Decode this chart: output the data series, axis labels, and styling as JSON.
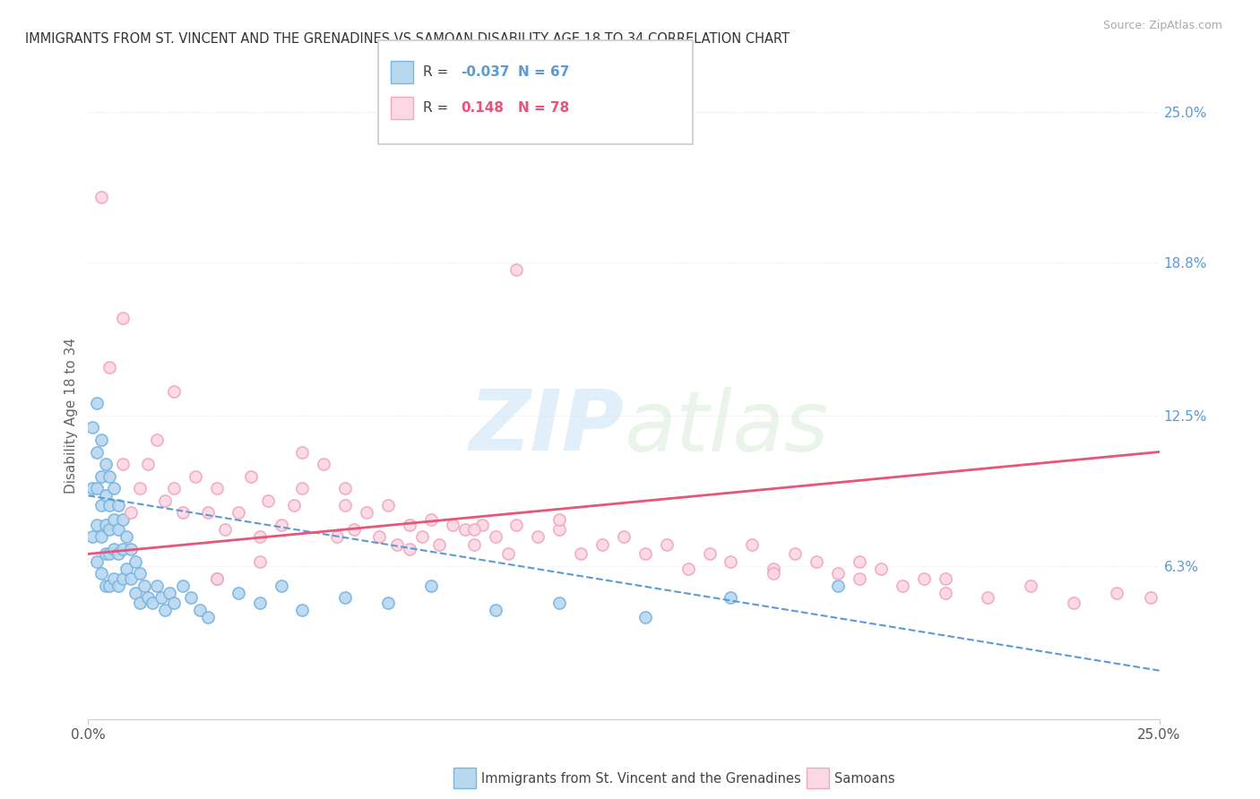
{
  "title": "IMMIGRANTS FROM ST. VINCENT AND THE GRENADINES VS SAMOAN DISABILITY AGE 18 TO 34 CORRELATION CHART",
  "source": "Source: ZipAtlas.com",
  "ylabel": "Disability Age 18 to 34",
  "xlim": [
    0.0,
    0.25
  ],
  "ylim": [
    0.0,
    0.25
  ],
  "ytick_values": [
    0.063,
    0.125,
    0.188,
    0.25
  ],
  "ytick_labels": [
    "6.3%",
    "12.5%",
    "18.8%",
    "25.0%"
  ],
  "xtick_values": [
    0.0,
    0.25
  ],
  "xtick_labels": [
    "0.0%",
    "25.0%"
  ],
  "r1_val": "-0.037",
  "n1_val": "67",
  "r2_val": "0.148",
  "n2_val": "78",
  "color_blue_face": "#b8d8f0",
  "color_blue_edge": "#7ab5e0",
  "color_pink_face": "#fcd8e4",
  "color_pink_edge": "#f0a8c0",
  "color_blue_line": "#5b9bd5",
  "color_pink_line": "#e8547a",
  "blue_line_y0": 0.092,
  "blue_line_y1": 0.02,
  "pink_line_y0": 0.068,
  "pink_line_y1": 0.11,
  "blue_x": [
    0.001,
    0.001,
    0.001,
    0.002,
    0.002,
    0.002,
    0.002,
    0.002,
    0.003,
    0.003,
    0.003,
    0.003,
    0.003,
    0.004,
    0.004,
    0.004,
    0.004,
    0.004,
    0.005,
    0.005,
    0.005,
    0.005,
    0.005,
    0.006,
    0.006,
    0.006,
    0.006,
    0.007,
    0.007,
    0.007,
    0.007,
    0.008,
    0.008,
    0.008,
    0.009,
    0.009,
    0.01,
    0.01,
    0.011,
    0.011,
    0.012,
    0.012,
    0.013,
    0.014,
    0.015,
    0.016,
    0.017,
    0.018,
    0.019,
    0.02,
    0.022,
    0.024,
    0.026,
    0.028,
    0.03,
    0.035,
    0.04,
    0.045,
    0.05,
    0.06,
    0.07,
    0.08,
    0.095,
    0.11,
    0.13,
    0.15,
    0.175
  ],
  "blue_y": [
    0.12,
    0.095,
    0.075,
    0.13,
    0.11,
    0.095,
    0.08,
    0.065,
    0.115,
    0.1,
    0.088,
    0.075,
    0.06,
    0.105,
    0.092,
    0.08,
    0.068,
    0.055,
    0.1,
    0.088,
    0.078,
    0.068,
    0.055,
    0.095,
    0.082,
    0.07,
    0.058,
    0.088,
    0.078,
    0.068,
    0.055,
    0.082,
    0.07,
    0.058,
    0.075,
    0.062,
    0.07,
    0.058,
    0.065,
    0.052,
    0.06,
    0.048,
    0.055,
    0.05,
    0.048,
    0.055,
    0.05,
    0.045,
    0.052,
    0.048,
    0.055,
    0.05,
    0.045,
    0.042,
    0.058,
    0.052,
    0.048,
    0.055,
    0.045,
    0.05,
    0.048,
    0.055,
    0.045,
    0.048,
    0.042,
    0.05,
    0.055
  ],
  "pink_x": [
    0.003,
    0.005,
    0.008,
    0.01,
    0.012,
    0.014,
    0.016,
    0.018,
    0.02,
    0.022,
    0.025,
    0.028,
    0.03,
    0.032,
    0.035,
    0.038,
    0.04,
    0.042,
    0.045,
    0.048,
    0.05,
    0.055,
    0.058,
    0.06,
    0.062,
    0.065,
    0.068,
    0.07,
    0.072,
    0.075,
    0.078,
    0.08,
    0.082,
    0.085,
    0.088,
    0.09,
    0.092,
    0.095,
    0.098,
    0.1,
    0.105,
    0.11,
    0.115,
    0.12,
    0.125,
    0.13,
    0.135,
    0.14,
    0.145,
    0.15,
    0.155,
    0.16,
    0.165,
    0.17,
    0.175,
    0.18,
    0.185,
    0.19,
    0.195,
    0.2,
    0.21,
    0.22,
    0.23,
    0.24,
    0.248,
    0.1,
    0.18,
    0.06,
    0.02,
    0.008,
    0.03,
    0.05,
    0.04,
    0.075,
    0.09,
    0.11,
    0.16,
    0.2
  ],
  "pink_y": [
    0.215,
    0.145,
    0.105,
    0.085,
    0.095,
    0.105,
    0.115,
    0.09,
    0.095,
    0.085,
    0.1,
    0.085,
    0.095,
    0.078,
    0.085,
    0.1,
    0.075,
    0.09,
    0.08,
    0.088,
    0.095,
    0.105,
    0.075,
    0.088,
    0.078,
    0.085,
    0.075,
    0.088,
    0.072,
    0.08,
    0.075,
    0.082,
    0.072,
    0.08,
    0.078,
    0.072,
    0.08,
    0.075,
    0.068,
    0.08,
    0.075,
    0.078,
    0.068,
    0.072,
    0.075,
    0.068,
    0.072,
    0.062,
    0.068,
    0.065,
    0.072,
    0.062,
    0.068,
    0.065,
    0.06,
    0.058,
    0.062,
    0.055,
    0.058,
    0.052,
    0.05,
    0.055,
    0.048,
    0.052,
    0.05,
    0.185,
    0.065,
    0.095,
    0.135,
    0.165,
    0.058,
    0.11,
    0.065,
    0.07,
    0.078,
    0.082,
    0.06,
    0.058
  ],
  "watermark_text": "ZIPatlas",
  "bg_color": "#ffffff",
  "grid_color": "#e8e8e8",
  "legend1_label": "Immigrants from St. Vincent and the Grenadines",
  "legend2_label": "Samoans"
}
